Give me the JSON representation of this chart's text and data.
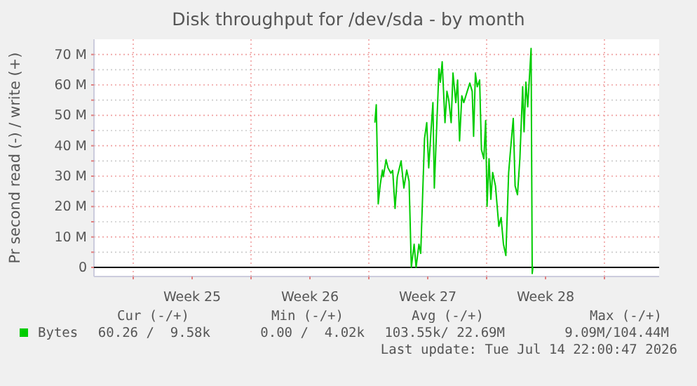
{
  "chart_data": {
    "type": "line",
    "title": "Disk throughput for /dev/sda - by month",
    "ylabel": "Pr second read (-) / write (+)",
    "xlim": [
      "2026-06-12T16:00",
      "2026-07-16T06:00"
    ],
    "xticks": [
      {
        "value": "2026-06-15T00:00",
        "label": null
      },
      {
        "value": "2026-06-18T12:00",
        "label": "Week 25"
      },
      {
        "value": "2026-06-22T00:00",
        "label": null
      },
      {
        "value": "2026-06-25T12:00",
        "label": "Week 26"
      },
      {
        "value": "2026-06-29T00:00",
        "label": null
      },
      {
        "value": "2026-07-02T12:00",
        "label": "Week 27"
      },
      {
        "value": "2026-07-06T00:00",
        "label": null
      },
      {
        "value": "2026-07-09T12:00",
        "label": "Week 28"
      },
      {
        "value": "2026-07-13T00:00",
        "label": null
      }
    ],
    "ylim": [
      -3,
      75
    ],
    "yticks": [
      {
        "value": 0,
        "label": "0"
      },
      {
        "value": 5,
        "label": null
      },
      {
        "value": 10,
        "label": "10 M"
      },
      {
        "value": 15,
        "label": null
      },
      {
        "value": 20,
        "label": "20 M"
      },
      {
        "value": 25,
        "label": null
      },
      {
        "value": 30,
        "label": "30 M"
      },
      {
        "value": 35,
        "label": null
      },
      {
        "value": 40,
        "label": "40 M"
      },
      {
        "value": 45,
        "label": null
      },
      {
        "value": 50,
        "label": "50 M"
      },
      {
        "value": 55,
        "label": null
      },
      {
        "value": 60,
        "label": "60 M"
      },
      {
        "value": 65,
        "label": null
      },
      {
        "value": 70,
        "label": "70 M"
      }
    ],
    "grid": true,
    "legend": "bottom",
    "line_style": "solid",
    "series": [
      {
        "name": "Bytes",
        "color": "#00cc00",
        "x": [
          "2026-06-29T08:36",
          "2026-06-29T10:36",
          "2026-06-29T13:24",
          "2026-06-29T16:00",
          "2026-06-29T19:24",
          "2026-06-29T20:36",
          "2026-06-30T00:36",
          "2026-06-30T03:24",
          "2026-06-30T07:24",
          "2026-06-30T10:00",
          "2026-06-30T13:24",
          "2026-06-30T16:36",
          "2026-06-30T22:00",
          "2026-07-01T02:00",
          "2026-07-01T06:00",
          "2026-07-01T09:24",
          "2026-07-01T12:36",
          "2026-07-01T16:36",
          "2026-07-01T19:24",
          "2026-07-01T23:24",
          "2026-07-02T02:00",
          "2026-07-02T07:24",
          "2026-07-02T10:36",
          "2026-07-02T13:24",
          "2026-07-02T16:36",
          "2026-07-02T19:24",
          "2026-07-02T21:24",
          "2026-07-03T00:00",
          "2026-07-03T04:00",
          "2026-07-03T06:00",
          "2026-07-03T08:36",
          "2026-07-03T12:36",
          "2026-07-03T15:24",
          "2026-07-03T18:00",
          "2026-07-03T21:24",
          "2026-07-04T00:00",
          "2026-07-04T04:00",
          "2026-07-04T06:36",
          "2026-07-04T09:24",
          "2026-07-04T12:36",
          "2026-07-04T15:24",
          "2026-07-04T19:24",
          "2026-07-05T00:00",
          "2026-07-05T03:24",
          "2026-07-05T05:24",
          "2026-07-05T08:00",
          "2026-07-05T10:36",
          "2026-07-05T14:00",
          "2026-07-05T16:36",
          "2026-07-05T20:00",
          "2026-07-05T22:36",
          "2026-07-06T00:36",
          "2026-07-06T03:24",
          "2026-07-06T06:00",
          "2026-07-06T08:36",
          "2026-07-06T12:36",
          "2026-07-06T17:24",
          "2026-07-06T20:36",
          "2026-07-07T00:00",
          "2026-07-07T03:24",
          "2026-07-07T07:24",
          "2026-07-07T10:36",
          "2026-07-07T14:00",
          "2026-07-07T16:36",
          "2026-07-07T20:00",
          "2026-07-07T23:24",
          "2026-07-08T03:24",
          "2026-07-08T05:24",
          "2026-07-08T08:00",
          "2026-07-08T10:36",
          "2026-07-08T15:24",
          "2026-07-08T17:00",
          "2026-07-08T18:00"
        ],
        "values": [
          47.6,
          53.5,
          20.9,
          26.8,
          32,
          29.8,
          35.4,
          32.7,
          31,
          31.9,
          19.4,
          29.8,
          35,
          26.1,
          32,
          28.3,
          0,
          7.6,
          0,
          7.6,
          4.6,
          42.4,
          47.6,
          32.7,
          44.6,
          54.2,
          26.1,
          41.6,
          65.3,
          60.9,
          67.6,
          47.6,
          57.9,
          55,
          47.6,
          63.9,
          54.2,
          61.6,
          41.6,
          56.4,
          54.2,
          57.2,
          60.6,
          57.9,
          43.1,
          63.9,
          59.4,
          61.6,
          38.7,
          35.7,
          48.3,
          20.1,
          35.7,
          22.4,
          31.2,
          26.8,
          13.5,
          16.4,
          7.6,
          3.9,
          31.2,
          40.1,
          49,
          26.8,
          23.9,
          35.7,
          59.4,
          44.6,
          60.9,
          52.8,
          72,
          -2,
          0
        ]
      }
    ],
    "annotations": [
      "Cur (-/+)",
      "Min (-/+)",
      "Avg (-/+)",
      "Max (-/+)",
      "60.26 /  9.58k",
      "0.00 /  4.02k",
      "103.55k/ 22.69M",
      "9.09M/104.44M",
      "Last update: Tue Jul 14 22:00:47 2026"
    ]
  }
}
